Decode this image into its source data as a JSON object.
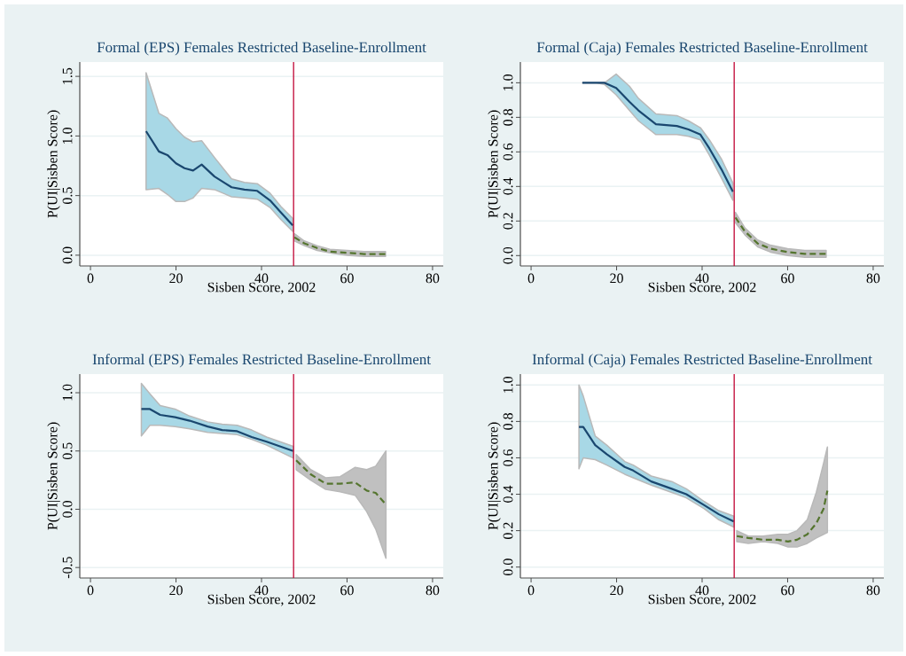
{
  "chart_data": [
    {
      "type": "line",
      "title": "Formal (EPS) Females Restricted Baseline-Enrollment",
      "xlabel": "Sisben Score, 2002",
      "ylabel": "P(UI|Sisben Score)",
      "xlim": [
        -2.5,
        82.5
      ],
      "ylim": [
        -0.09,
        1.62
      ],
      "xticks": [
        0,
        20,
        40,
        60,
        80
      ],
      "yticks": [
        {
          "value": 0,
          "label": "0.0"
        },
        {
          "value": 0.5,
          "label": "0.5"
        },
        {
          "value": 1,
          "label": "1.0"
        },
        {
          "value": 1.5,
          "label": "1.5"
        }
      ],
      "grid": "y",
      "marker": "none",
      "ref_lines": [
        {
          "axis": "x",
          "value": 47.5,
          "color": "#c10534"
        }
      ],
      "series": [
        {
          "color": "#1a476f",
          "line_style": "solid",
          "x": [
            13,
            16,
            18,
            20,
            22,
            24,
            26,
            29,
            33,
            36,
            39,
            42,
            44.5,
            47.3
          ],
          "values": [
            1.04,
            0.87,
            0.84,
            0.77,
            0.73,
            0.71,
            0.76,
            0.66,
            0.57,
            0.55,
            0.54,
            0.46,
            0.36,
            0.25
          ],
          "upper": [
            1.53,
            1.19,
            1.15,
            1.06,
            0.99,
            0.95,
            0.96,
            0.82,
            0.64,
            0.61,
            0.6,
            0.52,
            0.41,
            0.31
          ],
          "lower": [
            0.55,
            0.56,
            0.51,
            0.45,
            0.45,
            0.48,
            0.56,
            0.55,
            0.49,
            0.48,
            0.47,
            0.4,
            0.3,
            0.2
          ]
        },
        {
          "color": "#55752f",
          "line_style": "dashed",
          "x": [
            47.7,
            50,
            53,
            56,
            60,
            64,
            69
          ],
          "values": [
            0.15,
            0.1,
            0.06,
            0.03,
            0.02,
            0.01,
            0.01
          ],
          "upper": [
            0.18,
            0.12,
            0.08,
            0.05,
            0.04,
            0.03,
            0.03
          ],
          "lower": [
            0.12,
            0.08,
            0.04,
            0.02,
            0.0,
            -0.01,
            -0.01
          ]
        }
      ]
    },
    {
      "type": "line",
      "title": "Formal (Caja) Females Restricted Baseline-Enrollment",
      "xlabel": "Sisben Score, 2002",
      "ylabel": "P(UI|Sisben Score)",
      "xlim": [
        -2.5,
        82.5
      ],
      "ylim": [
        -0.06,
        1.12
      ],
      "xticks": [
        0,
        20,
        40,
        60,
        80
      ],
      "yticks": [
        {
          "value": 0,
          "label": "0.0"
        },
        {
          "value": 0.2,
          "label": "0.2"
        },
        {
          "value": 0.4,
          "label": "0.4"
        },
        {
          "value": 0.6,
          "label": "0.6"
        },
        {
          "value": 0.8,
          "label": "0.8"
        },
        {
          "value": 1,
          "label": "1.0"
        }
      ],
      "grid": "y",
      "marker": "none",
      "ref_lines": [
        {
          "axis": "x",
          "value": 47.5,
          "color": "#c10534"
        }
      ],
      "series": [
        {
          "color": "#1a476f",
          "line_style": "solid",
          "x": [
            12,
            15,
            17.2,
            19.9,
            23,
            25.1,
            29.2,
            34.1,
            36.8,
            39.6,
            41.7,
            44.5,
            47.2
          ],
          "values": [
            1.0,
            1.0,
            1.0,
            0.97,
            0.89,
            0.84,
            0.76,
            0.75,
            0.73,
            0.7,
            0.62,
            0.5,
            0.37
          ],
          "upper": [
            1.0,
            1.0,
            1.0,
            1.05,
            0.98,
            0.91,
            0.82,
            0.81,
            0.78,
            0.74,
            0.67,
            0.56,
            0.42
          ],
          "lower": [
            1.0,
            1.0,
            0.99,
            0.93,
            0.84,
            0.78,
            0.7,
            0.7,
            0.69,
            0.67,
            0.58,
            0.45,
            0.32
          ]
        },
        {
          "color": "#55752f",
          "line_style": "dashed",
          "x": [
            47.8,
            50,
            53,
            56,
            60,
            64,
            69
          ],
          "values": [
            0.22,
            0.14,
            0.07,
            0.04,
            0.02,
            0.01,
            0.01
          ],
          "upper": [
            0.25,
            0.16,
            0.09,
            0.06,
            0.04,
            0.03,
            0.03
          ],
          "lower": [
            0.19,
            0.12,
            0.05,
            0.02,
            0.0,
            -0.01,
            -0.01
          ]
        }
      ]
    },
    {
      "type": "line",
      "title": "Informal (EPS) Females Restricted Baseline-Enrollment",
      "xlabel": "Sisben Score, 2002",
      "ylabel": "P(UI|Sisben Score)",
      "xlim": [
        -2.5,
        82.5
      ],
      "ylim": [
        -0.59,
        1.16
      ],
      "xticks": [
        0,
        20,
        40,
        60,
        80
      ],
      "yticks": [
        {
          "value": -0.5,
          "label": "-0.5"
        },
        {
          "value": 0,
          "label": "0.0"
        },
        {
          "value": 0.5,
          "label": "0.5"
        },
        {
          "value": 1,
          "label": "1.0"
        }
      ],
      "grid": "y",
      "marker": "none",
      "ref_lines": [
        {
          "axis": "x",
          "value": 47.5,
          "color": "#c10534"
        }
      ],
      "series": [
        {
          "color": "#1a476f",
          "line_style": "solid",
          "x": [
            11.9,
            13.9,
            16.3,
            19.8,
            23.2,
            27.4,
            30.8,
            34.3,
            37.7,
            41.2,
            47.4
          ],
          "values": [
            0.86,
            0.86,
            0.81,
            0.79,
            0.76,
            0.71,
            0.68,
            0.67,
            0.62,
            0.58,
            0.5
          ],
          "upper": [
            1.08,
            0.99,
            0.89,
            0.86,
            0.8,
            0.75,
            0.73,
            0.72,
            0.68,
            0.62,
            0.54
          ],
          "lower": [
            0.63,
            0.72,
            0.72,
            0.71,
            0.69,
            0.66,
            0.65,
            0.64,
            0.6,
            0.55,
            0.44
          ]
        },
        {
          "color": "#55752f",
          "line_style": "dashed",
          "x": [
            48.1,
            51.5,
            55,
            58.4,
            61.9,
            64.6,
            66.7,
            69.1
          ],
          "values": [
            0.42,
            0.3,
            0.22,
            0.22,
            0.23,
            0.16,
            0.14,
            0.04
          ],
          "upper": [
            0.47,
            0.34,
            0.27,
            0.28,
            0.36,
            0.34,
            0.37,
            0.5
          ],
          "lower": [
            0.34,
            0.25,
            0.17,
            0.15,
            0.12,
            -0.02,
            -0.17,
            -0.42
          ]
        }
      ]
    },
    {
      "type": "line",
      "title": "Informal (Caja) Females Restricted Baseline-Enrollment",
      "xlabel": "Sisben Score, 2002",
      "ylabel": "P(UI|Sisben Score)",
      "xlim": [
        -2.5,
        82.5
      ],
      "ylim": [
        -0.06,
        1.06
      ],
      "xticks": [
        0,
        20,
        40,
        60,
        80
      ],
      "yticks": [
        {
          "value": 0,
          "label": "0.0"
        },
        {
          "value": 0.2,
          "label": "0.2"
        },
        {
          "value": 0.4,
          "label": "0.4"
        },
        {
          "value": 0.6,
          "label": "0.6"
        },
        {
          "value": 0.8,
          "label": "0.8"
        },
        {
          "value": 1,
          "label": "1.0"
        }
      ],
      "grid": "y",
      "marker": "none",
      "ref_lines": [
        {
          "axis": "x",
          "value": 47.5,
          "color": "#c10534"
        }
      ],
      "series": [
        {
          "color": "#1a476f",
          "line_style": "solid",
          "x": [
            11.2,
            12.2,
            15,
            17.7,
            21.9,
            23.9,
            28.1,
            32.9,
            36.3,
            40.5,
            43.9,
            47.4
          ],
          "values": [
            0.77,
            0.77,
            0.67,
            0.62,
            0.55,
            0.53,
            0.47,
            0.43,
            0.4,
            0.34,
            0.29,
            0.25
          ],
          "upper": [
            1.0,
            0.94,
            0.72,
            0.67,
            0.58,
            0.56,
            0.5,
            0.47,
            0.43,
            0.36,
            0.31,
            0.28
          ],
          "lower": [
            0.54,
            0.6,
            0.59,
            0.56,
            0.51,
            0.49,
            0.45,
            0.41,
            0.38,
            0.32,
            0.26,
            0.22
          ]
        },
        {
          "color": "#55752f",
          "line_style": "dashed",
          "x": [
            48.1,
            50.8,
            54.3,
            57.7,
            60.1,
            62.2,
            64.6,
            66.7,
            68.4,
            69.3
          ],
          "values": [
            0.17,
            0.16,
            0.15,
            0.15,
            0.14,
            0.15,
            0.18,
            0.24,
            0.32,
            0.42
          ],
          "upper": [
            0.2,
            0.17,
            0.17,
            0.18,
            0.18,
            0.2,
            0.26,
            0.41,
            0.57,
            0.66
          ],
          "lower": [
            0.14,
            0.13,
            0.14,
            0.13,
            0.11,
            0.11,
            0.13,
            0.16,
            0.18,
            0.19
          ]
        }
      ]
    }
  ]
}
